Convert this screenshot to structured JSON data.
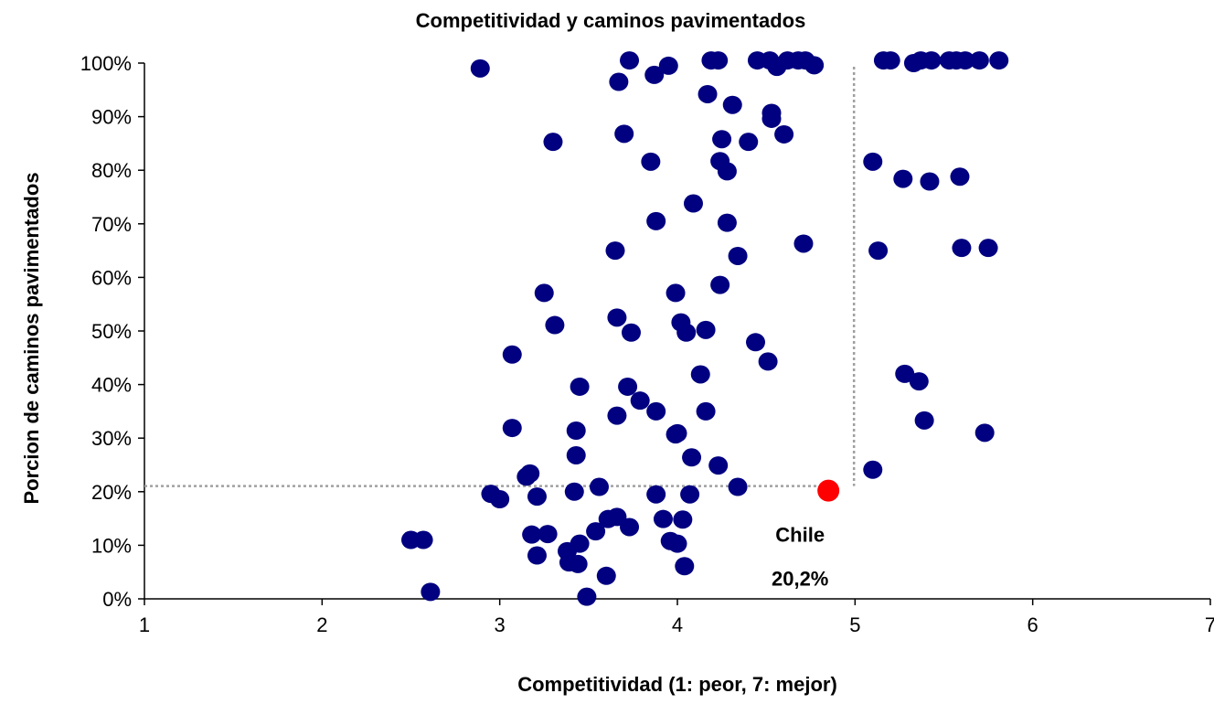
{
  "chart_data": {
    "type": "scatter",
    "title": "Competitividad y caminos pavimentados",
    "xlabel": "Competitividad (1: peor, 7: mejor)",
    "ylabel": "Porcion de caminos pavimentados",
    "xlim": [
      1,
      7
    ],
    "ylim": [
      0,
      100
    ],
    "x_ticks": [
      "1",
      "2",
      "3",
      "4",
      "5",
      "6",
      "7"
    ],
    "y_ticks": [
      "0%",
      "10%",
      "20%",
      "30%",
      "40%",
      "50%",
      "60%",
      "70%",
      "80%",
      "90%",
      "100%"
    ],
    "grid": false,
    "legend": "none",
    "colors": {
      "points": "#000080",
      "highlight": "#ff0000",
      "guide": "#a0a0a0"
    },
    "points": [
      [
        2.89,
        99
      ],
      [
        3.73,
        100.5
      ],
      [
        3.87,
        97.8
      ],
      [
        3.95,
        99.5
      ],
      [
        3.67,
        96.5
      ],
      [
        4.19,
        100.5
      ],
      [
        4.23,
        100.5
      ],
      [
        4.45,
        100.5
      ],
      [
        4.52,
        100.5
      ],
      [
        4.56,
        99.3
      ],
      [
        4.62,
        100.5
      ],
      [
        4.68,
        100.5
      ],
      [
        4.72,
        100.5
      ],
      [
        4.77,
        99.6
      ],
      [
        5.16,
        100.5
      ],
      [
        5.2,
        100.5
      ],
      [
        5.33,
        100
      ],
      [
        5.37,
        100.5
      ],
      [
        5.43,
        100.5
      ],
      [
        5.53,
        100.5
      ],
      [
        5.57,
        100.5
      ],
      [
        5.62,
        100.5
      ],
      [
        5.7,
        100.5
      ],
      [
        5.81,
        100.5
      ],
      [
        3.3,
        85.3
      ],
      [
        3.7,
        86.8
      ],
      [
        4.17,
        94.2
      ],
      [
        4.31,
        92.2
      ],
      [
        4.53,
        90.7
      ],
      [
        4.53,
        89.6
      ],
      [
        4.6,
        86.7
      ],
      [
        4.25,
        85.8
      ],
      [
        4.4,
        85.3
      ],
      [
        3.85,
        81.6
      ],
      [
        4.24,
        81.7
      ],
      [
        4.28,
        79.8
      ],
      [
        5.1,
        81.6
      ],
      [
        5.27,
        78.4
      ],
      [
        5.42,
        77.9
      ],
      [
        5.59,
        78.8
      ],
      [
        4.09,
        73.8
      ],
      [
        3.88,
        70.5
      ],
      [
        4.28,
        70.2
      ],
      [
        3.65,
        65
      ],
      [
        4.34,
        64
      ],
      [
        4.71,
        66.3
      ],
      [
        5.13,
        65
      ],
      [
        5.6,
        65.5
      ],
      [
        5.75,
        65.5
      ],
      [
        3.25,
        57.1
      ],
      [
        3.99,
        57.1
      ],
      [
        4.24,
        58.6
      ],
      [
        3.31,
        51.1
      ],
      [
        3.66,
        52.5
      ],
      [
        3.74,
        49.7
      ],
      [
        4.02,
        51.6
      ],
      [
        4.05,
        49.7
      ],
      [
        4.16,
        50.2
      ],
      [
        4.44,
        47.9
      ],
      [
        3.07,
        45.6
      ],
      [
        4.51,
        44.3
      ],
      [
        3.45,
        39.6
      ],
      [
        3.72,
        39.6
      ],
      [
        3.79,
        37
      ],
      [
        4.13,
        41.9
      ],
      [
        5.28,
        42
      ],
      [
        5.36,
        40.6
      ],
      [
        3.66,
        34.2
      ],
      [
        3.88,
        35
      ],
      [
        4.16,
        35
      ],
      [
        5.39,
        33.3
      ],
      [
        3.07,
        31.9
      ],
      [
        3.43,
        31.4
      ],
      [
        3.99,
        30.7
      ],
      [
        4.0,
        30.9
      ],
      [
        5.73,
        31
      ],
      [
        3.43,
        26.8
      ],
      [
        4.08,
        26.4
      ],
      [
        4.23,
        24.9
      ],
      [
        5.1,
        24.1
      ],
      [
        3.17,
        23.4
      ],
      [
        3.15,
        22.8
      ],
      [
        2.95,
        19.6
      ],
      [
        3.0,
        18.6
      ],
      [
        3.21,
        19.1
      ],
      [
        3.42,
        20
      ],
      [
        3.56,
        20.9
      ],
      [
        3.88,
        19.5
      ],
      [
        4.07,
        19.5
      ],
      [
        4.34,
        20.9
      ],
      [
        3.18,
        12
      ],
      [
        3.27,
        12.1
      ],
      [
        3.21,
        8.1
      ],
      [
        3.38,
        8.9
      ],
      [
        3.45,
        10.3
      ],
      [
        3.54,
        12.6
      ],
      [
        3.61,
        14.9
      ],
      [
        3.66,
        15.3
      ],
      [
        3.73,
        13.4
      ],
      [
        3.92,
        14.9
      ],
      [
        4.03,
        14.8
      ],
      [
        3.96,
        10.8
      ],
      [
        4.0,
        10.3
      ],
      [
        3.39,
        6.8
      ],
      [
        3.44,
        6.5
      ],
      [
        3.6,
        4.3
      ],
      [
        4.04,
        6.1
      ],
      [
        2.5,
        11
      ],
      [
        2.57,
        11
      ],
      [
        2.61,
        1.3
      ],
      [
        3.49,
        0.4
      ]
    ],
    "highlight": {
      "label": "Chile",
      "value_label": "20,2%",
      "x": 4.85,
      "y": 20.2
    }
  }
}
